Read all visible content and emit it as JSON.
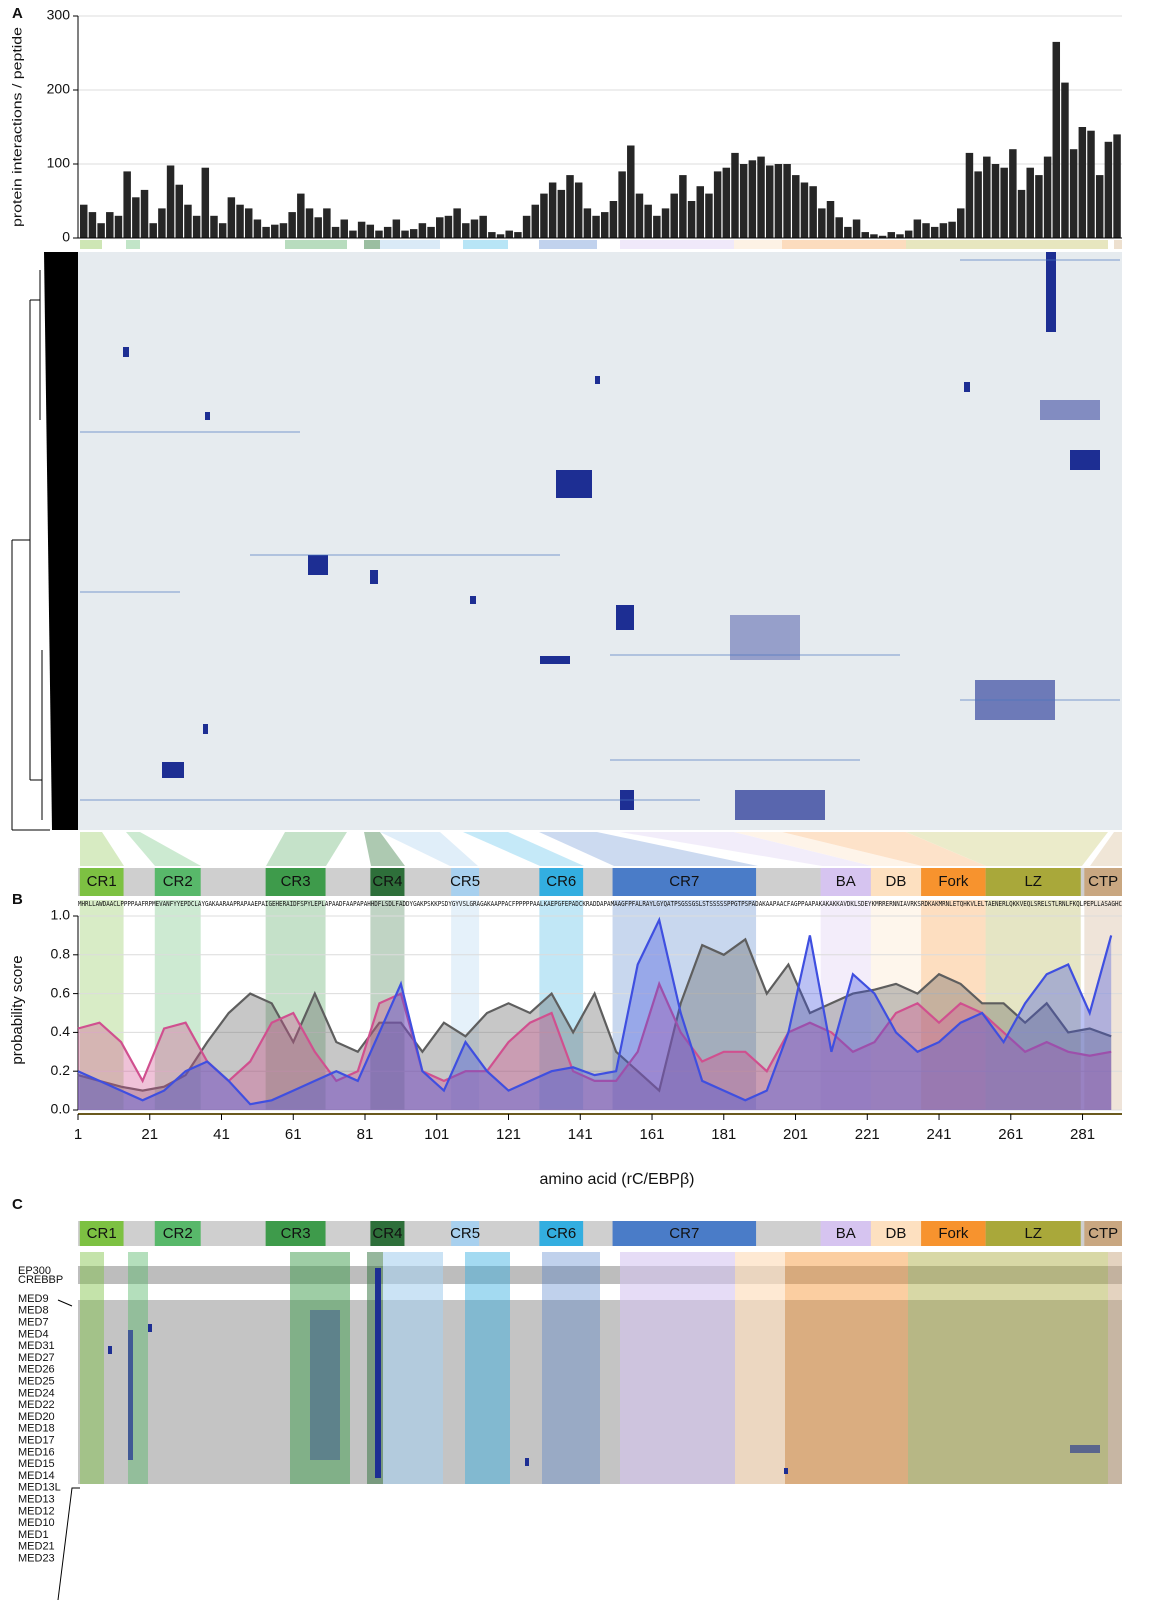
{
  "panels": [
    "A",
    "B",
    "C"
  ],
  "sequence": "MHRLLAWDAACLPPPPAAFRPMEVANFYYEPDCLAYGAKAARAAPRAPAAEPAIGEHERAIDFSPYLEPLAPAADFAAPAPAHHDFLSDLFADDYGAKPSKKPSDYGYVSLGRAGAKAAPPACFPPPPPAALKAEPGFEPADCKRADDAPAMAAGFPFALRAYLGYQATPSGSSGSLSTSSSSSPPGTPSPADAKAAPAACFAGPPAAPAKAKAKKAVDKLSDEYKMRRERNNIAVRKSRDKAKMRNLETQHKVLELTAENERLQKKVEQLSRELSTLRNLFKQLPEPLLASAGHC",
  "domains": [
    {
      "label": "CR1",
      "start": 1.5,
      "end": 13.7,
      "color": "#7dc142"
    },
    {
      "label": "CR2",
      "start": 22.4,
      "end": 35.2,
      "color": "#58b86a"
    },
    {
      "label": "CR3",
      "start": 53.3,
      "end": 70,
      "color": "#3e9b4b"
    },
    {
      "label": "CR4",
      "start": 82.5,
      "end": 92,
      "color": "#2e6f3a"
    },
    {
      "label": "CR5",
      "start": 105,
      "end": 112.8,
      "color": "#a8d0ee"
    },
    {
      "label": "CR6",
      "start": 129.6,
      "end": 141.8,
      "color": "#33aee0"
    },
    {
      "label": "CR7",
      "start": 150,
      "end": 190,
      "color": "#4a7cc8"
    },
    {
      "label": "BA",
      "start": 208,
      "end": 222,
      "color": "#d6c4f0"
    },
    {
      "label": "DB",
      "start": 222,
      "end": 236,
      "color": "#fde0c0"
    },
    {
      "label": "Fork",
      "start": 236,
      "end": 254,
      "color": "#f7932e"
    },
    {
      "label": "LZ",
      "start": 254,
      "end": 280.5,
      "color": "#a9a83a"
    },
    {
      "label": "CTP",
      "start": 281.5,
      "end": 292,
      "color": "#c9a781"
    }
  ],
  "chart_data": [
    {
      "type": "bar",
      "y_label": "protein interactions / peptide",
      "color": "#262626",
      "ylim": [
        0,
        300
      ],
      "yticks": [
        0,
        100,
        200,
        300
      ],
      "grid": true,
      "values": [
        45,
        35,
        20,
        35,
        30,
        90,
        55,
        65,
        20,
        40,
        98,
        72,
        45,
        30,
        95,
        30,
        20,
        55,
        45,
        40,
        25,
        15,
        18,
        20,
        35,
        60,
        40,
        28,
        40,
        15,
        25,
        10,
        22,
        18,
        10,
        15,
        25,
        10,
        12,
        20,
        15,
        28,
        30,
        40,
        20,
        25,
        30,
        8,
        5,
        10,
        8,
        30,
        45,
        60,
        75,
        65,
        85,
        75,
        40,
        30,
        35,
        50,
        90,
        125,
        60,
        45,
        30,
        40,
        60,
        85,
        50,
        70,
        60,
        90,
        95,
        115,
        100,
        105,
        110,
        98,
        100,
        100,
        85,
        75,
        70,
        40,
        50,
        28,
        15,
        25,
        8,
        5,
        3,
        8,
        5,
        10,
        25,
        20,
        15,
        20,
        22,
        40,
        115,
        90,
        110,
        100,
        95,
        120,
        65,
        95,
        85,
        110,
        265,
        210,
        120,
        150,
        145,
        85,
        130,
        140
      ]
    },
    {
      "type": "area",
      "y_label": "probability score",
      "x_label": "amino acid (rC/EBPβ)",
      "xlim": [
        1,
        292
      ],
      "xticks": [
        1,
        21,
        41,
        61,
        81,
        101,
        121,
        141,
        161,
        181,
        201,
        221,
        241,
        261,
        281
      ],
      "ylim": [
        0,
        1
      ],
      "yticks": [
        {
          "value": 0,
          "label": "0.0"
        },
        0.2,
        0.4,
        0.6,
        0.8,
        {
          "value": 1,
          "label": "1.0"
        }
      ],
      "grid": true,
      "x": [
        1,
        7,
        13,
        19,
        25,
        31,
        37,
        43,
        49,
        55,
        61,
        67,
        73,
        79,
        85,
        91,
        97,
        103,
        109,
        115,
        121,
        127,
        133,
        139,
        145,
        151,
        157,
        163,
        169,
        175,
        181,
        187,
        193,
        199,
        205,
        211,
        217,
        223,
        229,
        235,
        241,
        247,
        253,
        259,
        265,
        271,
        277,
        283,
        289
      ],
      "series": [
        {
          "color": "#5e5e5e",
          "values": [
            0.18,
            0.15,
            0.12,
            0.1,
            0.12,
            0.18,
            0.35,
            0.5,
            0.6,
            0.55,
            0.35,
            0.6,
            0.35,
            0.3,
            0.45,
            0.45,
            0.3,
            0.45,
            0.38,
            0.5,
            0.55,
            0.5,
            0.6,
            0.4,
            0.6,
            0.3,
            0.2,
            0.1,
            0.55,
            0.85,
            0.8,
            0.88,
            0.6,
            0.75,
            0.5,
            0.55,
            0.6,
            0.62,
            0.65,
            0.6,
            0.7,
            0.65,
            0.55,
            0.55,
            0.45,
            0.55,
            0.4,
            0.42,
            0.38
          ]
        },
        {
          "color": "#d0508f",
          "values": [
            0.42,
            0.45,
            0.35,
            0.15,
            0.42,
            0.45,
            0.25,
            0.15,
            0.25,
            0.45,
            0.5,
            0.3,
            0.15,
            0.2,
            0.55,
            0.6,
            0.2,
            0.15,
            0.2,
            0.2,
            0.35,
            0.45,
            0.5,
            0.2,
            0.15,
            0.15,
            0.3,
            0.65,
            0.4,
            0.25,
            0.3,
            0.3,
            0.2,
            0.4,
            0.45,
            0.4,
            0.3,
            0.35,
            0.5,
            0.55,
            0.45,
            0.55,
            0.5,
            0.4,
            0.3,
            0.35,
            0.3,
            0.28,
            0.3
          ]
        },
        {
          "color": "#3f4fe0",
          "values": [
            0.2,
            0.15,
            0.1,
            0.05,
            0.1,
            0.2,
            0.25,
            0.15,
            0.03,
            0.05,
            0.1,
            0.15,
            0.2,
            0.15,
            0.4,
            0.65,
            0.2,
            0.1,
            0.35,
            0.2,
            0.1,
            0.15,
            0.2,
            0.22,
            0.18,
            0.2,
            0.75,
            0.98,
            0.5,
            0.15,
            0.1,
            0.05,
            0.1,
            0.4,
            0.9,
            0.3,
            0.7,
            0.6,
            0.4,
            0.3,
            0.35,
            0.45,
            0.5,
            0.35,
            0.55,
            0.7,
            0.75,
            0.5,
            0.9
          ]
        }
      ]
    },
    {
      "type": "heatmap",
      "row_labels": [
        "EP300",
        "CREBBP",
        "MED9",
        "MED8",
        "MED7",
        "MED4",
        "MED31",
        "MED27",
        "MED26",
        "MED25",
        "MED24",
        "MED22",
        "MED20",
        "MED18",
        "MED17",
        "MED16",
        "MED15",
        "MED14",
        "MED13L",
        "MED13",
        "MED12",
        "MED10",
        "MED1",
        "MED21",
        "MED23"
      ]
    }
  ]
}
